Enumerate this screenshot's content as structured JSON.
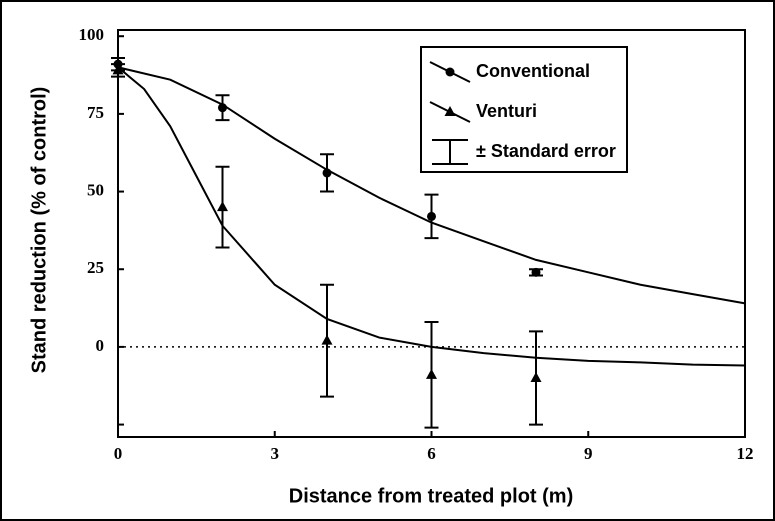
{
  "chart_data": {
    "type": "scatter",
    "xlabel": "Distance from treated plot (m)",
    "ylabel": "Stand reduction (% of control)",
    "xlim": [
      0,
      12
    ],
    "ylim": [
      -29,
      102
    ],
    "xticks": [
      0,
      3,
      6,
      9,
      12
    ],
    "yticks": [
      0,
      25,
      50,
      75,
      100
    ],
    "minor_yticks": [
      -25
    ],
    "reference_line": 0,
    "error_legend": "± Standard error",
    "legend": "upper right",
    "series": [
      {
        "name": "Conventional",
        "color": "#000000",
        "marker": "circle",
        "x": [
          0,
          2,
          4,
          6,
          8
        ],
        "values": [
          91,
          77,
          56,
          42,
          24
        ],
        "errors": [
          2,
          4,
          6,
          7,
          1
        ],
        "fit": {
          "x": [
            0,
            1,
            2,
            3,
            4,
            5,
            6,
            7,
            8,
            9,
            10,
            11,
            12
          ],
          "values": [
            90,
            86,
            78,
            67,
            57,
            48,
            40,
            34,
            28,
            24,
            20,
            17,
            14
          ]
        }
      },
      {
        "name": "Venturi",
        "color": "#000000",
        "marker": "triangle",
        "x": [
          0,
          2,
          4,
          6,
          8
        ],
        "values": [
          89,
          45,
          2,
          -9,
          -10
        ],
        "errors": [
          2,
          13,
          18,
          17,
          15
        ],
        "fit": {
          "x": [
            0,
            0.5,
            1,
            1.5,
            2,
            3,
            4,
            5,
            6,
            7,
            8,
            9,
            10,
            11,
            12
          ],
          "values": [
            90,
            83,
            71,
            55,
            39,
            20,
            9,
            3,
            0,
            -2,
            -3.5,
            -4.5,
            -5,
            -5.7,
            -6
          ]
        }
      }
    ]
  }
}
